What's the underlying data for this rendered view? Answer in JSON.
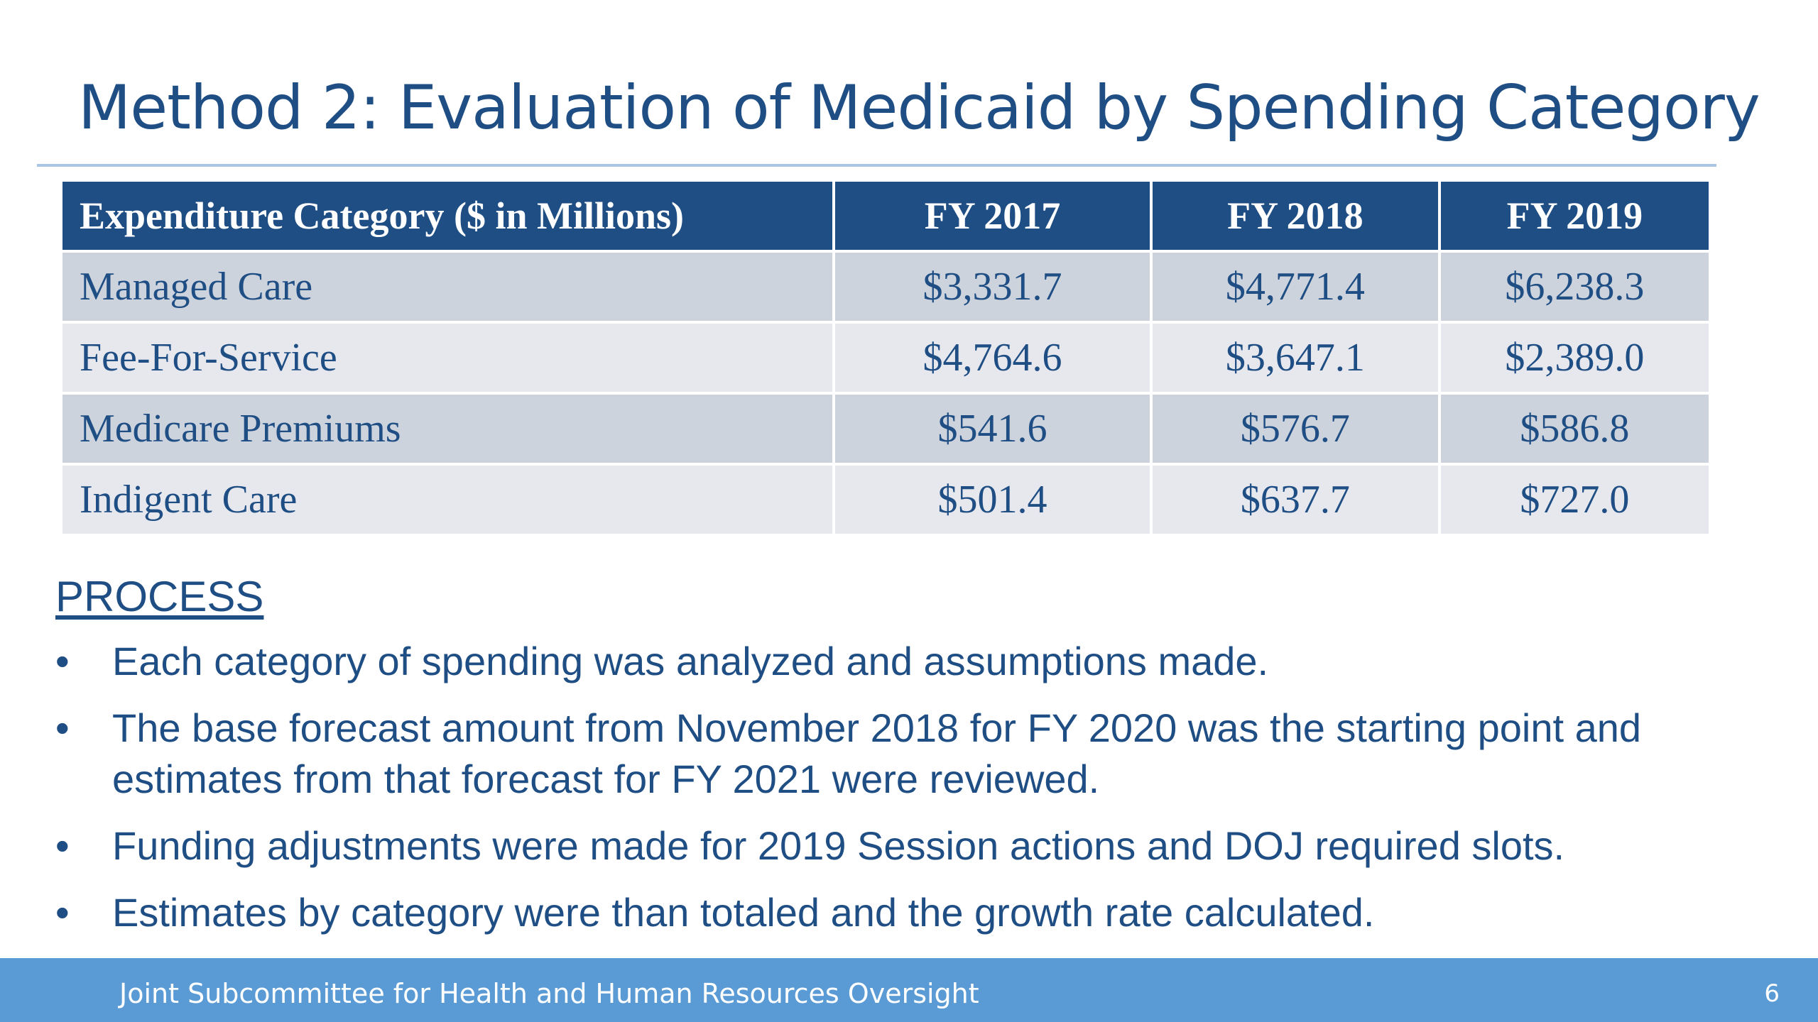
{
  "slide": {
    "title": "Method 2:  Evaluation of Medicaid by Spending Category"
  },
  "table": {
    "headers": [
      "Expenditure Category ($ in Millions)",
      "FY 2017",
      "FY 2018",
      "FY 2019"
    ],
    "rows": [
      [
        "Managed Care",
        "$3,331.7",
        "$4,771.4",
        "$6,238.3"
      ],
      [
        "Fee-For-Service",
        "$4,764.6",
        "$3,647.1",
        "$2,389.0"
      ],
      [
        "Medicare Premiums",
        "$541.6",
        "$576.7",
        "$586.8"
      ],
      [
        "Indigent Care",
        "$501.4",
        "$637.7",
        "$727.0"
      ]
    ]
  },
  "process": {
    "heading": "PROCESS",
    "bullet_symbol": "•",
    "items": [
      "Each category of spending was analyzed and assumptions made.",
      "The base forecast amount from November 2018 for FY 2020 was the starting point and estimates from that forecast for FY 2021 were reviewed.",
      "Funding adjustments were made for 2019 Session actions and DOJ required slots.",
      "Estimates by category were than totaled and the growth rate calculated."
    ]
  },
  "footer": {
    "text": "Joint Subcommittee for Health and Human Resources Oversight",
    "page_number": "6"
  },
  "colors": {
    "primary_navy": "#1f4e84",
    "header_fill": "#1f4e84",
    "row_dark": "#cdd3dd",
    "row_light": "#e6e8ee",
    "footer_bar": "#5b9bd5",
    "rule": "#a9c6e6"
  }
}
